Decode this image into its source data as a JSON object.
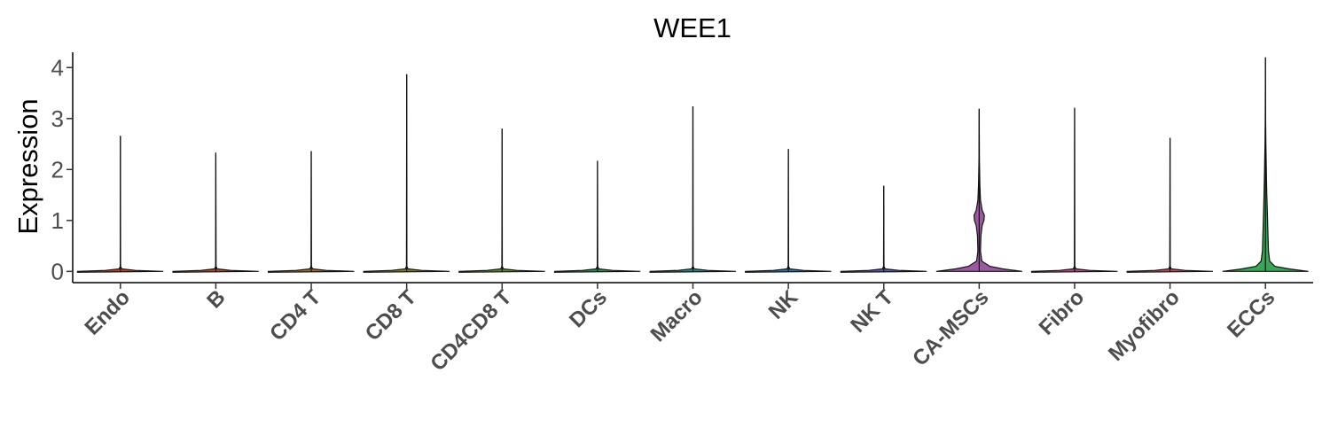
{
  "chart_data": {
    "type": "violin",
    "title": "WEE1",
    "xlabel": "",
    "ylabel": "Expression",
    "ylim": [
      -0.22,
      4.3
    ],
    "yticks": [
      0,
      1,
      2,
      3,
      4
    ],
    "grid": false,
    "legend": "none",
    "categories": [
      "Endo",
      "B",
      "CD4 T",
      "CD8 T",
      "CD4CD8 T",
      "DCs",
      "Macro",
      "NK",
      "NK T",
      "CA-MSCs",
      "Fibro",
      "Myofibro",
      "ECCs"
    ],
    "max_values": [
      2.66,
      2.33,
      2.36,
      3.87,
      2.8,
      2.17,
      3.24,
      2.4,
      1.68,
      3.19,
      3.21,
      2.62,
      4.2
    ],
    "median_values": [
      0,
      0,
      0,
      0,
      0,
      0,
      0,
      0,
      0,
      0,
      0,
      0,
      0
    ],
    "density_profiles": {
      "CA-MSCs": [
        [
          0.0,
          1.0
        ],
        [
          0.05,
          0.55
        ],
        [
          0.1,
          0.25
        ],
        [
          0.2,
          0.06
        ],
        [
          0.4,
          0.03
        ],
        [
          0.7,
          0.04
        ],
        [
          0.9,
          0.07
        ],
        [
          1.0,
          0.11
        ],
        [
          1.1,
          0.12
        ],
        [
          1.2,
          0.07
        ],
        [
          1.4,
          0.03
        ],
        [
          1.7,
          0.015
        ],
        [
          2.2,
          0.005
        ],
        [
          3.19,
          0.0
        ]
      ],
      "ECCs": [
        [
          0.0,
          1.0
        ],
        [
          0.05,
          0.55
        ],
        [
          0.1,
          0.22
        ],
        [
          0.2,
          0.1
        ],
        [
          0.4,
          0.07
        ],
        [
          0.7,
          0.06
        ],
        [
          1.0,
          0.05
        ],
        [
          1.3,
          0.04
        ],
        [
          1.6,
          0.03
        ],
        [
          2.0,
          0.02
        ],
        [
          2.5,
          0.01
        ],
        [
          3.0,
          0.004
        ],
        [
          4.2,
          0.0
        ]
      ]
    },
    "colors": {
      "Endo": "#b8442e",
      "B": "#a64b2e",
      "CD4 T": "#9a6b2c",
      "CD8 T": "#7f7a2a",
      "CD4CD8 T": "#5a8a2e",
      "DCs": "#2e8a54",
      "Macro": "#2a8a8a",
      "NK": "#2e6fa3",
      "NK T": "#5a5aa8",
      "CA-MSCs": "#9b5aa0",
      "Fibro": "#b04a82",
      "Myofibro": "#b44a5a",
      "ECCs": "#3aa556"
    }
  }
}
